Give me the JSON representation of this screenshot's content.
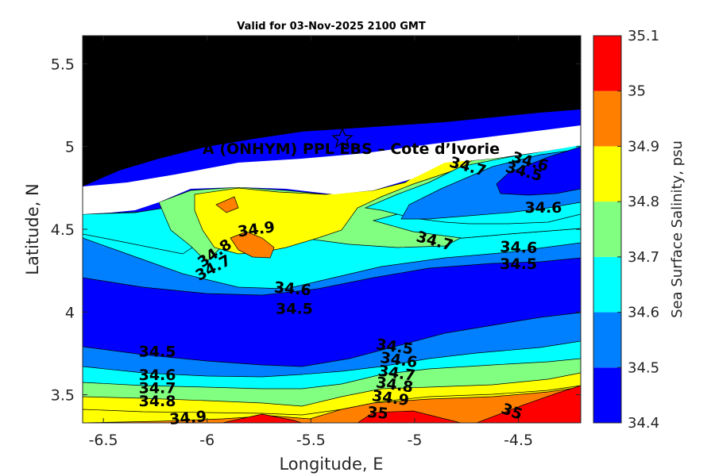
{
  "chart_data": {
    "type": "contour",
    "title": "Valid for 03-Nov-2025 2100 GMT",
    "xlabel": "Longitude, E",
    "ylabel": "Latitude, N",
    "xlim": [
      -6.6,
      -4.2
    ],
    "ylim": [
      3.33,
      5.67
    ],
    "x_ticks": [
      -6.5,
      -6,
      -5.5,
      -5,
      -4.5
    ],
    "x_tick_labels": [
      "-6.5",
      "-6",
      "-5.5",
      "-5",
      "-4.5"
    ],
    "y_ticks": [
      3.5,
      4,
      4.5,
      5,
      5.5
    ],
    "y_tick_labels": [
      "3.5",
      "4",
      "4.5",
      "5",
      "5.5"
    ],
    "colorbar": {
      "label": "Sea Surface Salinity, psu",
      "levels": [
        34.4,
        34.5,
        34.6,
        34.7,
        34.8,
        34.9,
        35,
        35.1
      ],
      "level_labels": [
        "34.4",
        "34.5",
        "34.6",
        "34.7",
        "34.8",
        "34.9",
        "35",
        "35.1"
      ],
      "colors": [
        "#0000ff",
        "#0080ff",
        "#00ffff",
        "#80ff80",
        "#ffff00",
        "#ff8000",
        "#ff0000"
      ]
    },
    "land_color": "#000000",
    "no_data_color": "#ffffff",
    "annotation": {
      "text": "A (ONHYM) PPL EBS  – Cote d’Ivorie",
      "marker": "star",
      "marker_lon": -5.35,
      "marker_lat": 5.05
    },
    "contour_labels": [
      {
        "text": "34.9",
        "lon": -5.76,
        "lat": 4.47,
        "angle": 8
      },
      {
        "text": "34.8",
        "lon": -5.95,
        "lat": 4.33,
        "angle": 35
      },
      {
        "text": "34.7",
        "lon": -5.96,
        "lat": 4.24,
        "angle": 28
      },
      {
        "text": "34.6",
        "lon": -5.59,
        "lat": 4.11,
        "angle": -5
      },
      {
        "text": "34.5",
        "lon": -5.58,
        "lat": 3.99,
        "angle": 0
      },
      {
        "text": "34.5",
        "lon": -6.24,
        "lat": 3.73,
        "angle": 0
      },
      {
        "text": "34.6",
        "lon": -6.24,
        "lat": 3.59,
        "angle": 0
      },
      {
        "text": "34.7",
        "lon": -6.24,
        "lat": 3.51,
        "angle": 0
      },
      {
        "text": "34.8",
        "lon": -6.24,
        "lat": 3.43,
        "angle": 0
      },
      {
        "text": "34.9",
        "lon": -6.09,
        "lat": 3.33,
        "angle": 5
      },
      {
        "text": "34.5",
        "lon": -5.1,
        "lat": 3.76,
        "angle": -8
      },
      {
        "text": "34.6",
        "lon": -5.08,
        "lat": 3.68,
        "angle": -8
      },
      {
        "text": "34.7",
        "lon": -5.09,
        "lat": 3.6,
        "angle": -8
      },
      {
        "text": "34.8",
        "lon": -5.1,
        "lat": 3.53,
        "angle": -8
      },
      {
        "text": "34.9",
        "lon": -5.12,
        "lat": 3.45,
        "angle": -8
      },
      {
        "text": "35",
        "lon": -5.18,
        "lat": 3.36,
        "angle": -5
      },
      {
        "text": "35",
        "lon": -4.54,
        "lat": 3.37,
        "angle": -20
      },
      {
        "text": "34.7",
        "lon": -4.91,
        "lat": 4.4,
        "angle": -15
      },
      {
        "text": "34.6",
        "lon": -4.5,
        "lat": 4.36,
        "angle": -2
      },
      {
        "text": "34.5",
        "lon": -4.5,
        "lat": 4.26,
        "angle": 0
      },
      {
        "text": "34.6",
        "lon": -4.38,
        "lat": 4.6,
        "angle": 0
      },
      {
        "text": "34.7",
        "lon": -4.75,
        "lat": 4.85,
        "angle": -15
      },
      {
        "text": "34.6",
        "lon": -4.45,
        "lat": 4.88,
        "angle": -15
      },
      {
        "text": "34.5",
        "lon": -4.48,
        "lat": 4.82,
        "angle": -15
      }
    ]
  }
}
